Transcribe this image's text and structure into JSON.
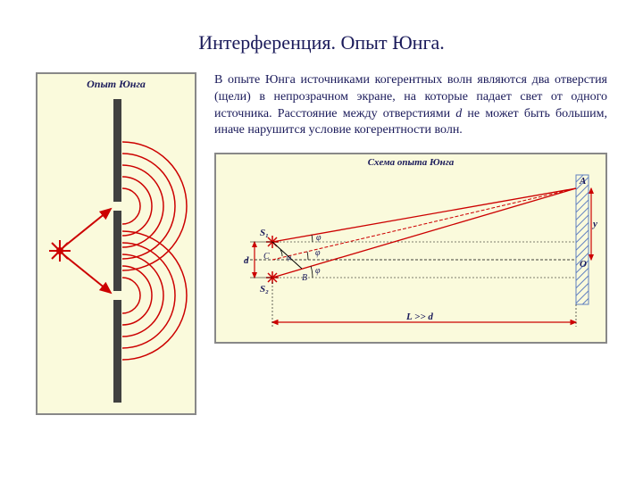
{
  "title": "Интерференция. Опыт Юнга.",
  "description": "В опыте Юнга источниками когерентных волн являются два отверстия (щели) в непрозрачном экране, на которые падает свет от одного источника. Расстояние между отверстиями <span class='italic'>d</span> не может быть большим, иначе нарушится условие когерентности волн.",
  "left_diagram": {
    "title": "Опыт Юнга",
    "background": "#fafadc",
    "border": "#888888",
    "barrier_color": "#404040",
    "wave_color": "#cc0000",
    "source_color": "#cc0000"
  },
  "scheme": {
    "title": "Схема опыта Юнга",
    "background": "#fafadc",
    "border": "#888888",
    "line_color": "#cc0000",
    "dash_color": "#000000",
    "arrow_color": "#cc0000",
    "screen_color": "#6080c0",
    "labels": {
      "S1": "S₁",
      "S2": "S₂",
      "A": "A",
      "B": "B",
      "C": "C",
      "O": "O",
      "d": "d",
      "y": "y",
      "phi": "φ",
      "L": "L >> d"
    }
  }
}
